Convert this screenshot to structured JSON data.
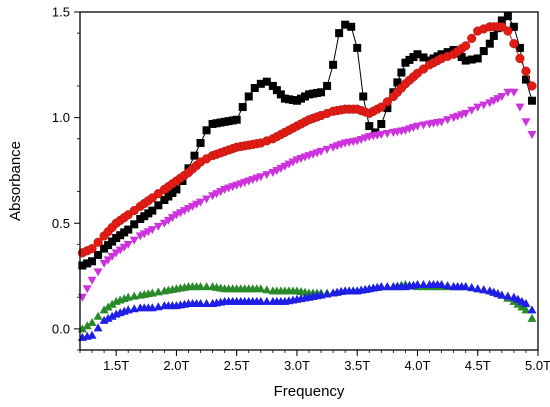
{
  "chart_data": {
    "type": "scatter",
    "title": "",
    "xlabel": "Frequency",
    "ylabel": "Absorbance",
    "xlim": [
      1.2,
      5.0
    ],
    "ylim": [
      -0.1,
      1.5
    ],
    "grid": false,
    "x_ticks": [
      {
        "value": 1.5,
        "label": "1.5T"
      },
      {
        "value": 2.0,
        "label": "2.0T"
      },
      {
        "value": 2.5,
        "label": "2.5T"
      },
      {
        "value": 3.0,
        "label": "3.0T"
      },
      {
        "value": 3.5,
        "label": "3.5T"
      },
      {
        "value": 4.0,
        "label": "4.0T"
      },
      {
        "value": 4.5,
        "label": "4.5T"
      },
      {
        "value": 5.0,
        "label": "5.0T"
      }
    ],
    "y_ticks": [
      {
        "value": 0.0,
        "label": "0.0"
      },
      {
        "value": 0.5,
        "label": "0.5"
      },
      {
        "value": 1.0,
        "label": "1.0"
      },
      {
        "value": 1.5,
        "label": "1.5"
      }
    ],
    "series": [
      {
        "marker": "square",
        "color": "#000000",
        "connected": true,
        "points": [
          [
            1.22,
            0.3
          ],
          [
            1.3,
            0.32
          ],
          [
            1.4,
            0.38
          ],
          [
            1.5,
            0.43
          ],
          [
            1.6,
            0.47
          ],
          [
            1.7,
            0.52
          ],
          [
            1.8,
            0.56
          ],
          [
            1.9,
            0.61
          ],
          [
            2.0,
            0.66
          ],
          [
            2.05,
            0.7
          ],
          [
            2.1,
            0.76
          ],
          [
            2.15,
            0.82
          ],
          [
            2.2,
            0.88
          ],
          [
            2.25,
            0.94
          ],
          [
            2.3,
            0.97
          ],
          [
            2.4,
            0.98
          ],
          [
            2.5,
            0.99
          ],
          [
            2.55,
            1.05
          ],
          [
            2.6,
            1.1
          ],
          [
            2.65,
            1.14
          ],
          [
            2.7,
            1.16
          ],
          [
            2.75,
            1.17
          ],
          [
            2.8,
            1.15
          ],
          [
            2.9,
            1.09
          ],
          [
            3.0,
            1.08
          ],
          [
            3.1,
            1.11
          ],
          [
            3.2,
            1.12
          ],
          [
            3.25,
            1.15
          ],
          [
            3.3,
            1.25
          ],
          [
            3.35,
            1.4
          ],
          [
            3.4,
            1.44
          ],
          [
            3.45,
            1.43
          ],
          [
            3.5,
            1.33
          ],
          [
            3.55,
            1.1
          ],
          [
            3.6,
            0.96
          ],
          [
            3.65,
            0.93
          ],
          [
            3.7,
            0.97
          ],
          [
            3.8,
            1.12
          ],
          [
            3.9,
            1.26
          ],
          [
            4.0,
            1.3
          ],
          [
            4.1,
            1.27
          ],
          [
            4.2,
            1.3
          ],
          [
            4.3,
            1.32
          ],
          [
            4.4,
            1.27
          ],
          [
            4.5,
            1.28
          ],
          [
            4.6,
            1.35
          ],
          [
            4.7,
            1.46
          ],
          [
            4.75,
            1.48
          ],
          [
            4.8,
            1.43
          ],
          [
            4.85,
            1.33
          ],
          [
            4.9,
            1.18
          ],
          [
            4.95,
            1.08
          ]
        ]
      },
      {
        "marker": "circle",
        "color": "#e31b12",
        "connected": true,
        "points": [
          [
            1.22,
            0.36
          ],
          [
            1.3,
            0.38
          ],
          [
            1.4,
            0.44
          ],
          [
            1.5,
            0.5
          ],
          [
            1.6,
            0.54
          ],
          [
            1.7,
            0.58
          ],
          [
            1.8,
            0.62
          ],
          [
            1.9,
            0.66
          ],
          [
            2.0,
            0.7
          ],
          [
            2.1,
            0.74
          ],
          [
            2.2,
            0.79
          ],
          [
            2.3,
            0.82
          ],
          [
            2.4,
            0.84
          ],
          [
            2.5,
            0.86
          ],
          [
            2.6,
            0.87
          ],
          [
            2.7,
            0.88
          ],
          [
            2.8,
            0.9
          ],
          [
            2.9,
            0.93
          ],
          [
            3.0,
            0.96
          ],
          [
            3.1,
            0.99
          ],
          [
            3.2,
            1.01
          ],
          [
            3.3,
            1.03
          ],
          [
            3.4,
            1.04
          ],
          [
            3.5,
            1.04
          ],
          [
            3.6,
            1.02
          ],
          [
            3.7,
            1.05
          ],
          [
            3.8,
            1.1
          ],
          [
            3.9,
            1.16
          ],
          [
            4.0,
            1.21
          ],
          [
            4.1,
            1.25
          ],
          [
            4.2,
            1.28
          ],
          [
            4.3,
            1.3
          ],
          [
            4.4,
            1.34
          ],
          [
            4.5,
            1.41
          ],
          [
            4.6,
            1.43
          ],
          [
            4.7,
            1.43
          ],
          [
            4.75,
            1.41
          ],
          [
            4.8,
            1.35
          ],
          [
            4.85,
            1.28
          ],
          [
            4.9,
            1.22
          ],
          [
            4.95,
            1.15
          ]
        ]
      },
      {
        "marker": "triangle-down",
        "color": "#cc33dd",
        "connected": false,
        "points": [
          [
            1.22,
            0.15
          ],
          [
            1.3,
            0.23
          ],
          [
            1.4,
            0.31
          ],
          [
            1.5,
            0.36
          ],
          [
            1.6,
            0.4
          ],
          [
            1.7,
            0.44
          ],
          [
            1.8,
            0.47
          ],
          [
            1.9,
            0.5
          ],
          [
            2.0,
            0.54
          ],
          [
            2.1,
            0.57
          ],
          [
            2.2,
            0.6
          ],
          [
            2.3,
            0.63
          ],
          [
            2.4,
            0.66
          ],
          [
            2.5,
            0.68
          ],
          [
            2.6,
            0.7
          ],
          [
            2.7,
            0.72
          ],
          [
            2.8,
            0.74
          ],
          [
            2.9,
            0.77
          ],
          [
            3.0,
            0.8
          ],
          [
            3.1,
            0.82
          ],
          [
            3.2,
            0.84
          ],
          [
            3.3,
            0.86
          ],
          [
            3.4,
            0.88
          ],
          [
            3.5,
            0.89
          ],
          [
            3.6,
            0.91
          ],
          [
            3.7,
            0.92
          ],
          [
            3.8,
            0.93
          ],
          [
            3.9,
            0.94
          ],
          [
            4.0,
            0.96
          ],
          [
            4.1,
            0.97
          ],
          [
            4.2,
            0.98
          ],
          [
            4.3,
            1.0
          ],
          [
            4.4,
            1.02
          ],
          [
            4.5,
            1.05
          ],
          [
            4.6,
            1.07
          ],
          [
            4.7,
            1.1
          ],
          [
            4.75,
            1.12
          ],
          [
            4.8,
            1.12
          ],
          [
            4.85,
            1.05
          ],
          [
            4.9,
            0.98
          ],
          [
            4.95,
            0.92
          ]
        ]
      },
      {
        "marker": "triangle-up",
        "color": "#2a8a2a",
        "connected": false,
        "points": [
          [
            1.22,
            0.0
          ],
          [
            1.3,
            0.03
          ],
          [
            1.4,
            0.09
          ],
          [
            1.5,
            0.13
          ],
          [
            1.6,
            0.15
          ],
          [
            1.7,
            0.16
          ],
          [
            1.8,
            0.17
          ],
          [
            1.9,
            0.18
          ],
          [
            2.0,
            0.19
          ],
          [
            2.1,
            0.2
          ],
          [
            2.2,
            0.2
          ],
          [
            2.3,
            0.2
          ],
          [
            2.4,
            0.19
          ],
          [
            2.5,
            0.19
          ],
          [
            2.6,
            0.19
          ],
          [
            2.7,
            0.19
          ],
          [
            2.8,
            0.18
          ],
          [
            2.9,
            0.18
          ],
          [
            3.0,
            0.18
          ],
          [
            3.1,
            0.17
          ],
          [
            3.2,
            0.17
          ],
          [
            3.3,
            0.17
          ],
          [
            3.4,
            0.18
          ],
          [
            3.5,
            0.18
          ],
          [
            3.6,
            0.19
          ],
          [
            3.7,
            0.2
          ],
          [
            3.8,
            0.2
          ],
          [
            3.9,
            0.21
          ],
          [
            4.0,
            0.2
          ],
          [
            4.1,
            0.2
          ],
          [
            4.2,
            0.2
          ],
          [
            4.3,
            0.2
          ],
          [
            4.4,
            0.2
          ],
          [
            4.5,
            0.19
          ],
          [
            4.6,
            0.18
          ],
          [
            4.7,
            0.16
          ],
          [
            4.8,
            0.13
          ],
          [
            4.9,
            0.09
          ],
          [
            4.95,
            0.05
          ]
        ]
      },
      {
        "marker": "triangle-up",
        "color": "#1e1ee6",
        "connected": false,
        "points": [
          [
            1.22,
            -0.04
          ],
          [
            1.3,
            -0.03
          ],
          [
            1.4,
            0.04
          ],
          [
            1.5,
            0.07
          ],
          [
            1.6,
            0.09
          ],
          [
            1.7,
            0.1
          ],
          [
            1.8,
            0.1
          ],
          [
            1.9,
            0.11
          ],
          [
            2.0,
            0.11
          ],
          [
            2.1,
            0.12
          ],
          [
            2.2,
            0.12
          ],
          [
            2.3,
            0.12
          ],
          [
            2.4,
            0.13
          ],
          [
            2.5,
            0.13
          ],
          [
            2.6,
            0.13
          ],
          [
            2.7,
            0.13
          ],
          [
            2.8,
            0.13
          ],
          [
            2.9,
            0.13
          ],
          [
            3.0,
            0.14
          ],
          [
            3.1,
            0.15
          ],
          [
            3.2,
            0.16
          ],
          [
            3.3,
            0.17
          ],
          [
            3.4,
            0.18
          ],
          [
            3.5,
            0.18
          ],
          [
            3.6,
            0.19
          ],
          [
            3.7,
            0.2
          ],
          [
            3.8,
            0.2
          ],
          [
            3.9,
            0.2
          ],
          [
            4.0,
            0.21
          ],
          [
            4.1,
            0.21
          ],
          [
            4.2,
            0.21
          ],
          [
            4.3,
            0.2
          ],
          [
            4.4,
            0.2
          ],
          [
            4.5,
            0.19
          ],
          [
            4.6,
            0.18
          ],
          [
            4.7,
            0.16
          ],
          [
            4.8,
            0.15
          ],
          [
            4.9,
            0.12
          ],
          [
            4.95,
            0.09
          ]
        ]
      }
    ]
  }
}
